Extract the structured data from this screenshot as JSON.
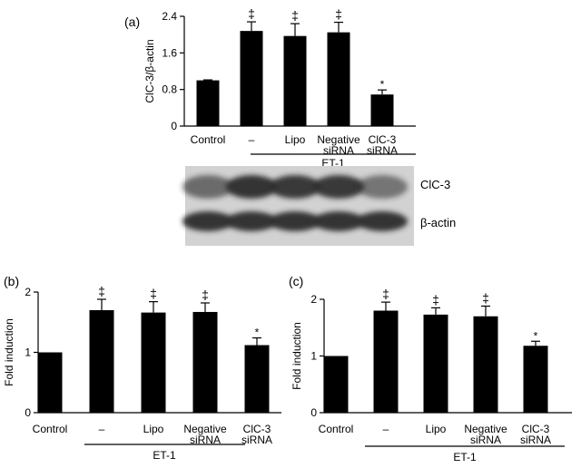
{
  "colors": {
    "bar": "#000000",
    "axis": "#000000",
    "blot_background": "#d2d2d2",
    "band": "#2a2a2a"
  },
  "chart_data": [
    {
      "panel": "(a)",
      "type": "bar",
      "categories": [
        "Control",
        "–",
        "Lipo",
        "Negative siRNA",
        "ClC-3 siRNA"
      ],
      "category_lines": [
        [
          "Control"
        ],
        [
          "–"
        ],
        [
          "Lipo"
        ],
        [
          "Negative",
          "siRNA"
        ],
        [
          "ClC-3",
          "siRNA"
        ]
      ],
      "values": [
        1.0,
        2.08,
        1.97,
        2.05,
        0.69
      ],
      "errors": [
        0.01,
        0.2,
        0.27,
        0.22,
        0.1
      ],
      "markers": [
        "",
        "‡",
        "‡",
        "‡",
        "*"
      ],
      "ylabel": "ClC-3/β-actin",
      "yticks": [
        0,
        0.8,
        1.6,
        2.4
      ],
      "ytick_labels": [
        "0",
        "0.8",
        "1.6",
        "2.4"
      ],
      "ylim": [
        0,
        2.4
      ],
      "group_label": "ET-1",
      "grid": false
    },
    {
      "panel": "(b)",
      "type": "bar",
      "categories": [
        "Control",
        "–",
        "Lipo",
        "Negative siRNA",
        "ClC-3 siRNA"
      ],
      "category_lines": [
        [
          "Control"
        ],
        [
          "–"
        ],
        [
          "Lipo"
        ],
        [
          "Negative",
          "siRNA"
        ],
        [
          "ClC-3",
          "siRNA"
        ]
      ],
      "values": [
        1.0,
        1.7,
        1.66,
        1.67,
        1.12
      ],
      "errors": [
        0.0,
        0.18,
        0.18,
        0.15,
        0.12
      ],
      "markers": [
        "",
        "‡",
        "‡",
        "‡",
        "*"
      ],
      "ylabel": "Fold induction",
      "yticks": [
        0,
        1,
        2
      ],
      "ytick_labels": [
        "0",
        "1",
        "2"
      ],
      "ylim": [
        0,
        2
      ],
      "group_label": "ET-1",
      "grid": false
    },
    {
      "panel": "(c)",
      "type": "bar",
      "categories": [
        "Control",
        "–",
        "Lipo",
        "Negative siRNA",
        "ClC-3 siRNA"
      ],
      "category_lines": [
        [
          "Control"
        ],
        [
          "–"
        ],
        [
          "Lipo"
        ],
        [
          "Negative",
          "siRNA"
        ],
        [
          "ClC-3",
          "siRNA"
        ]
      ],
      "values": [
        1.0,
        1.8,
        1.73,
        1.7,
        1.18
      ],
      "errors": [
        0.0,
        0.15,
        0.12,
        0.18,
        0.08
      ],
      "markers": [
        "",
        "‡",
        "‡",
        "‡",
        "*"
      ],
      "ylabel": "Fold induction",
      "yticks": [
        0,
        1,
        2
      ],
      "ytick_labels": [
        "0",
        "1",
        "2"
      ],
      "ylim": [
        0,
        2
      ],
      "group_label": "ET-1",
      "grid": false
    }
  ],
  "blot": {
    "rows": [
      {
        "label": "ClC-3",
        "intensity": [
          0.6,
          0.95,
          0.9,
          0.9,
          0.55
        ]
      },
      {
        "label": "β-actin",
        "intensity": [
          0.95,
          0.95,
          0.95,
          0.95,
          0.95
        ]
      }
    ]
  }
}
